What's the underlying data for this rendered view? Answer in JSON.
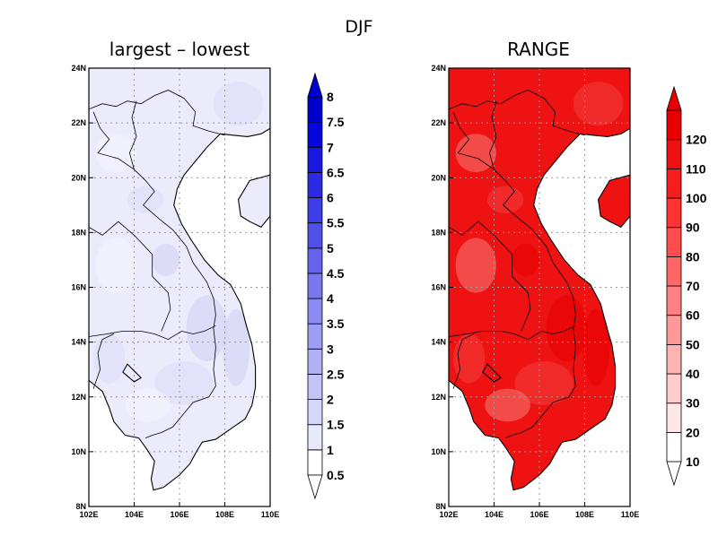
{
  "figure": {
    "suptitle": "DJF",
    "panels": [
      {
        "title": "largest – lowest",
        "colorbar": {
          "colors": [
            "#ffffff",
            "#e9e9fd",
            "#d6d6fa",
            "#c3c3f8",
            "#b0b0f5",
            "#9d9df3",
            "#8a8af0",
            "#7777ee",
            "#6464eb",
            "#5151e9",
            "#3e3ee6",
            "#2b2be4",
            "#1818e1",
            "#0606de",
            "#0000ce"
          ],
          "labels": [
            "0.5",
            "1",
            "1.5",
            "2",
            "2.5",
            "3",
            "3.5",
            "4",
            "4.5",
            "5",
            "5.5",
            "6",
            "6.5",
            "7",
            "7.5",
            "8"
          ]
        },
        "field": {
          "land": "#ebebfc",
          "light": "#f5f5ff",
          "mid": "#dcdcf9",
          "dark": "#d2d2f7"
        }
      },
      {
        "title": "RANGE",
        "colorbar": {
          "colors": [
            "#ffffff",
            "#ffe6e6",
            "#ffcccc",
            "#ffb3b3",
            "#ff9999",
            "#ff8080",
            "#ff6666",
            "#ff4d4d",
            "#ff3333",
            "#f71d1d",
            "#ee1010",
            "#e60000"
          ],
          "labels": [
            "10",
            "20",
            "30",
            "40",
            "50",
            "60",
            "70",
            "80",
            "90",
            "100",
            "110",
            "120"
          ]
        },
        "field": {
          "land": "#ee1212",
          "light": "#f77070",
          "mid": "#f23838",
          "dark": "#e60000"
        }
      }
    ],
    "lon_ticks": [
      "102E",
      "104E",
      "106E",
      "108E",
      "110E"
    ],
    "lat_ticks": [
      "8N",
      "10N",
      "12N",
      "14N",
      "16N",
      "18N",
      "20N",
      "22N",
      "24N"
    ]
  }
}
